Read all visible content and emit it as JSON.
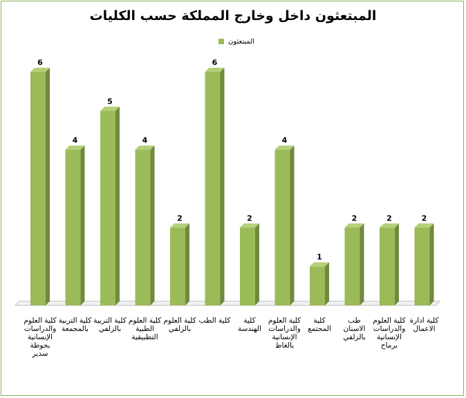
{
  "chart_data": {
    "type": "bar",
    "title": "المبتعثون داخل وخارج المملكة حسب الكليات",
    "xlabel": "",
    "ylabel": "",
    "ylim": [
      0,
      6
    ],
    "grid": false,
    "legend_position": "top-center",
    "categories": [
      "كلية العلوم والدراسات الإنسانية بحوطة سدير",
      "كلية التربية بالمجمعة",
      "كلية التربية بالزلفي",
      "كلية العلوم الطبية التطبيقية",
      "كلية العلوم بالزلفي",
      "كلية الطب",
      "كلية الهندسة",
      "كلية العلوم والدراسات الإنسانية بالغاط",
      "كلية المجتمع",
      "طب الاسنان بالزلفي",
      "كلية العلوم والدراسات الإنسانية برماح",
      "كلية ادارة الاعمال"
    ],
    "series": [
      {
        "name": "المبتعثون",
        "values": [
          6,
          4,
          5,
          4,
          2,
          6,
          2,
          4,
          1,
          2,
          2,
          2
        ]
      }
    ]
  },
  "colors": {
    "bar_front": "#9bbb59",
    "bar_side": "#71893f",
    "bar_top": "#b5d07a",
    "border": "#8db453"
  }
}
